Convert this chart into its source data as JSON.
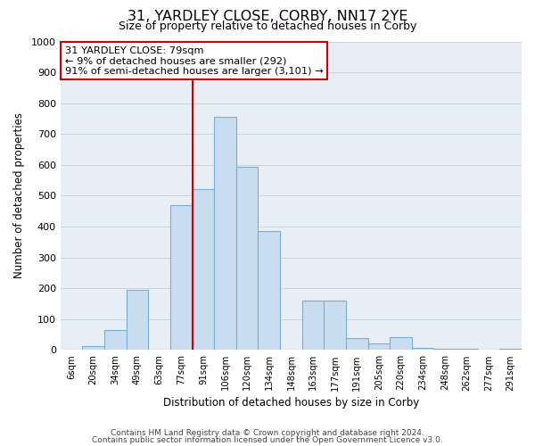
{
  "title": "31, YARDLEY CLOSE, CORBY, NN17 2YE",
  "subtitle": "Size of property relative to detached houses in Corby",
  "xlabel": "Distribution of detached houses by size in Corby",
  "ylabel": "Number of detached properties",
  "footer_line1": "Contains HM Land Registry data © Crown copyright and database right 2024.",
  "footer_line2": "Contains public sector information licensed under the Open Government Licence v3.0.",
  "bar_labels": [
    "6sqm",
    "20sqm",
    "34sqm",
    "49sqm",
    "63sqm",
    "77sqm",
    "91sqm",
    "106sqm",
    "120sqm",
    "134sqm",
    "148sqm",
    "163sqm",
    "177sqm",
    "191sqm",
    "205sqm",
    "220sqm",
    "234sqm",
    "248sqm",
    "262sqm",
    "277sqm",
    "291sqm"
  ],
  "bar_values": [
    0,
    13,
    65,
    195,
    0,
    470,
    520,
    755,
    595,
    385,
    0,
    160,
    160,
    38,
    22,
    42,
    8,
    5,
    5,
    0,
    5
  ],
  "bar_color": "#c9ddf0",
  "bar_edge_color": "#7aadd4",
  "ylim": [
    0,
    1000
  ],
  "yticks": [
    0,
    100,
    200,
    300,
    400,
    500,
    600,
    700,
    800,
    900,
    1000
  ],
  "property_line_color": "#cc0000",
  "annotation_line1": "31 YARDLEY CLOSE: 79sqm",
  "annotation_line2": "← 9% of detached houses are smaller (292)",
  "annotation_line3": "91% of semi-detached houses are larger (3,101) →",
  "annotation_box_color": "#cc0000",
  "grid_color": "#c8d4e4",
  "bg_color": "#e8eef5",
  "property_bar_index": 5
}
